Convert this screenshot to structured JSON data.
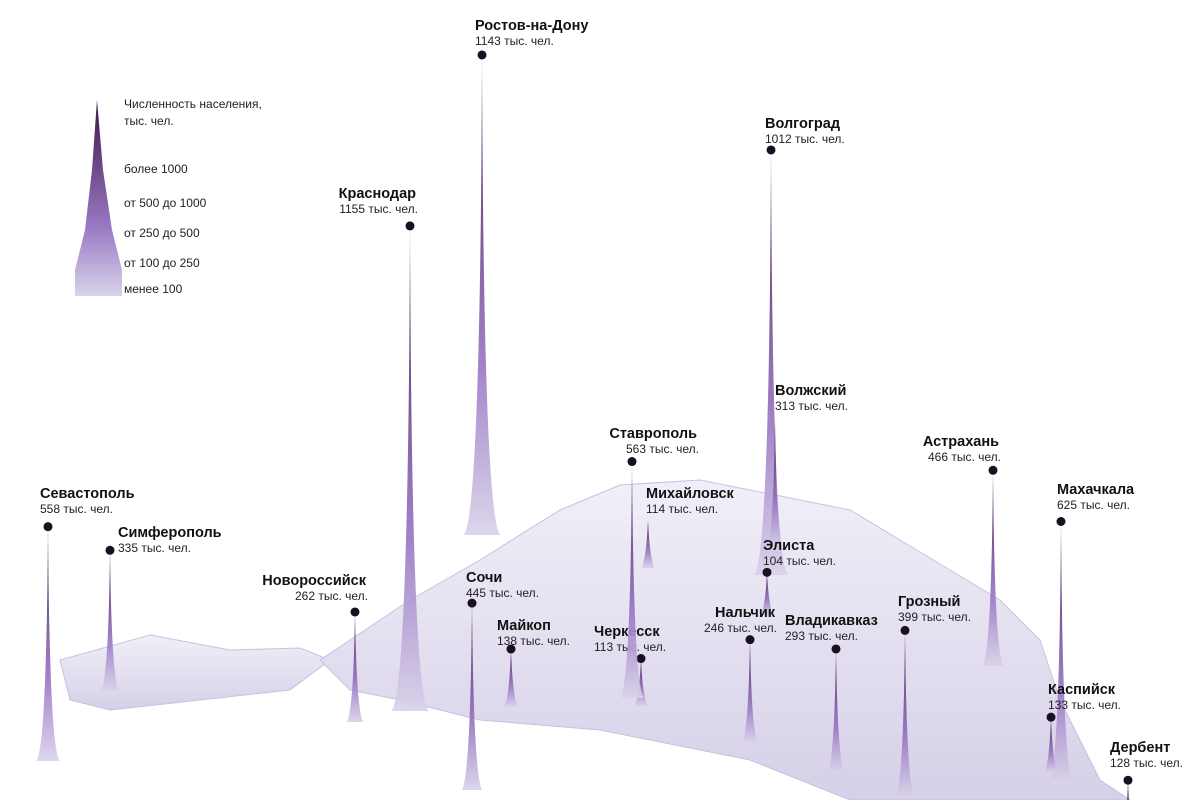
{
  "legend": {
    "title_lines": [
      "Численность населения,",
      "тыс. чел."
    ],
    "items": [
      "более 1000",
      "от 500 до 1000",
      "от 250 до 500",
      "от 100 до 250",
      "менее 100"
    ]
  },
  "cities": [
    {
      "name": "Ростов-на-Дону",
      "population": 1143,
      "population_label": "1143 тыс. чел."
    },
    {
      "name": "Краснодар",
      "population": 1155,
      "population_label": "1155 тыс. чел."
    },
    {
      "name": "Волгоград",
      "population": 1012,
      "population_label": "1012 тыс. чел."
    },
    {
      "name": "Севастополь",
      "population": 558,
      "population_label": "558 тыс. чел."
    },
    {
      "name": "Симферополь",
      "population": 335,
      "population_label": "335 тыс. чел."
    },
    {
      "name": "Новороссийск",
      "population": 262,
      "population_label": "262 тыс. чел."
    },
    {
      "name": "Сочи",
      "population": 445,
      "population_label": "445 тыс. чел."
    },
    {
      "name": "Майкоп",
      "population": 138,
      "population_label": "138 тыс. чел."
    },
    {
      "name": "Черкесск",
      "population": 113,
      "population_label": "113 тыс. чел."
    },
    {
      "name": "Ставрополь",
      "population": 563,
      "population_label": "563 тыс. чел."
    },
    {
      "name": "Михайловск",
      "population": 114,
      "population_label": "114 тыс. чел."
    },
    {
      "name": "Волжский",
      "population": 313,
      "population_label": "313 тыс. чел."
    },
    {
      "name": "Элиста",
      "population": 104,
      "population_label": "104 тыс. чел."
    },
    {
      "name": "Нальчик",
      "population": 246,
      "population_label": "246 тыс. чел."
    },
    {
      "name": "Владикавказ",
      "population": 293,
      "population_label": "293 тыс. чел."
    },
    {
      "name": "Грозный",
      "population": 399,
      "population_label": "399 тыс. чел."
    },
    {
      "name": "Астрахань",
      "population": 466,
      "population_label": "466 тыс. чел."
    },
    {
      "name": "Махачкала",
      "population": 625,
      "population_label": "625 тыс. чел."
    },
    {
      "name": "Каспийск",
      "population": 133,
      "population_label": "133 тыс. чел."
    },
    {
      "name": "Дербент",
      "population": 128,
      "population_label": "128 тыс. чел."
    }
  ]
}
